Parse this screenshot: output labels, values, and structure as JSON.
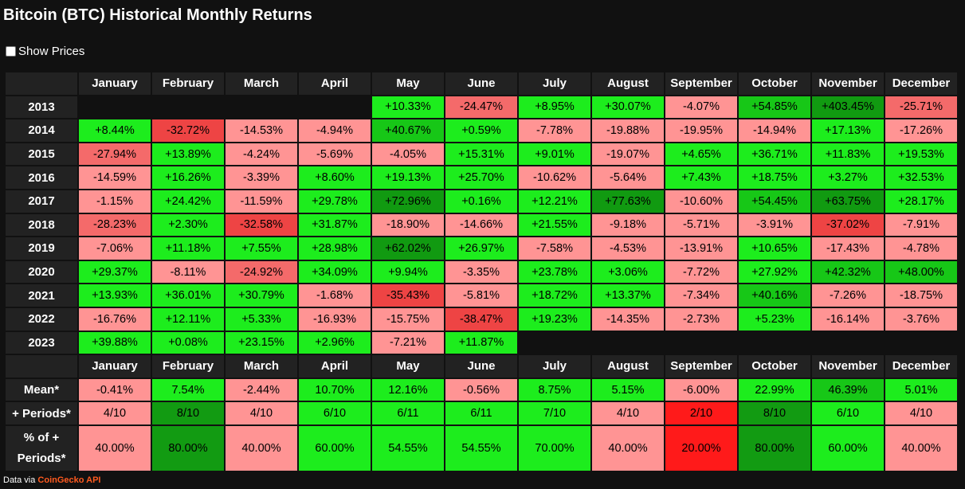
{
  "title": "Bitcoin (BTC) Historical Monthly Returns",
  "show_prices_label": "Show Prices",
  "footer": {
    "prefix": "Data via ",
    "link": "CoinGecko API"
  },
  "chart_data": {
    "type": "table",
    "title": "Bitcoin (BTC) Historical Monthly Returns",
    "columns": [
      "January",
      "February",
      "March",
      "April",
      "May",
      "June",
      "July",
      "August",
      "September",
      "October",
      "November",
      "December"
    ],
    "years": [
      {
        "year": "2013",
        "values": [
          null,
          null,
          null,
          null,
          "+10.33%",
          "-24.47%",
          "+8.95%",
          "+30.07%",
          "-4.07%",
          "+54.85%",
          "+403.45%",
          "-25.71%"
        ]
      },
      {
        "year": "2014",
        "values": [
          "+8.44%",
          "-32.72%",
          "-14.53%",
          "-4.94%",
          "+40.67%",
          "+0.59%",
          "-7.78%",
          "-19.88%",
          "-19.95%",
          "-14.94%",
          "+17.13%",
          "-17.26%"
        ]
      },
      {
        "year": "2015",
        "values": [
          "-27.94%",
          "+13.89%",
          "-4.24%",
          "-5.69%",
          "-4.05%",
          "+15.31%",
          "+9.01%",
          "-19.07%",
          "+4.65%",
          "+36.71%",
          "+11.83%",
          "+19.53%"
        ]
      },
      {
        "year": "2016",
        "values": [
          "-14.59%",
          "+16.26%",
          "-3.39%",
          "+8.60%",
          "+19.13%",
          "+25.70%",
          "-10.62%",
          "-5.64%",
          "+7.43%",
          "+18.75%",
          "+3.27%",
          "+32.53%"
        ]
      },
      {
        "year": "2017",
        "values": [
          "-1.15%",
          "+24.42%",
          "-11.59%",
          "+29.78%",
          "+72.96%",
          "+0.16%",
          "+12.21%",
          "+77.63%",
          "-10.60%",
          "+54.45%",
          "+63.75%",
          "+28.17%"
        ]
      },
      {
        "year": "2018",
        "values": [
          "-28.23%",
          "+2.30%",
          "-32.58%",
          "+31.87%",
          "-18.90%",
          "-14.66%",
          "+21.55%",
          "-9.18%",
          "-5.71%",
          "-3.91%",
          "-37.02%",
          "-7.91%"
        ]
      },
      {
        "year": "2019",
        "values": [
          "-7.06%",
          "+11.18%",
          "+7.55%",
          "+28.98%",
          "+62.02%",
          "+26.97%",
          "-7.58%",
          "-4.53%",
          "-13.91%",
          "+10.65%",
          "-17.43%",
          "-4.78%"
        ]
      },
      {
        "year": "2020",
        "values": [
          "+29.37%",
          "-8.11%",
          "-24.92%",
          "+34.09%",
          "+9.94%",
          "-3.35%",
          "+23.78%",
          "+3.06%",
          "-7.72%",
          "+27.92%",
          "+42.32%",
          "+48.00%"
        ]
      },
      {
        "year": "2021",
        "values": [
          "+13.93%",
          "+36.01%",
          "+30.79%",
          "-1.68%",
          "-35.43%",
          "-5.81%",
          "+18.72%",
          "+13.37%",
          "-7.34%",
          "+40.16%",
          "-7.26%",
          "-18.75%"
        ]
      },
      {
        "year": "2022",
        "values": [
          "-16.76%",
          "+12.11%",
          "+5.33%",
          "-16.93%",
          "-15.75%",
          "-38.47%",
          "+19.23%",
          "-14.35%",
          "-2.73%",
          "+5.23%",
          "-16.14%",
          "-3.76%"
        ]
      },
      {
        "year": "2023",
        "values": [
          "+39.88%",
          "+0.08%",
          "+23.15%",
          "+2.96%",
          "-7.21%",
          "+11.87%",
          null,
          null,
          null,
          null,
          null,
          null
        ]
      }
    ],
    "stats": [
      {
        "label": "Mean*",
        "values": [
          "-0.41%",
          "7.54%",
          "-2.44%",
          "10.70%",
          "12.16%",
          "-0.56%",
          "8.75%",
          "5.15%",
          "-6.00%",
          "22.99%",
          "46.39%",
          "5.01%"
        ]
      },
      {
        "label": "+ Periods*",
        "values": [
          "4/10",
          "8/10",
          "4/10",
          "6/10",
          "6/11",
          "6/11",
          "7/10",
          "4/10",
          "2/10",
          "8/10",
          "6/10",
          "4/10"
        ]
      },
      {
        "label": "% of + Periods*",
        "values": [
          "40.00%",
          "80.00%",
          "40.00%",
          "60.00%",
          "54.55%",
          "54.55%",
          "70.00%",
          "40.00%",
          "20.00%",
          "80.00%",
          "60.00%",
          "40.00%"
        ]
      }
    ]
  }
}
